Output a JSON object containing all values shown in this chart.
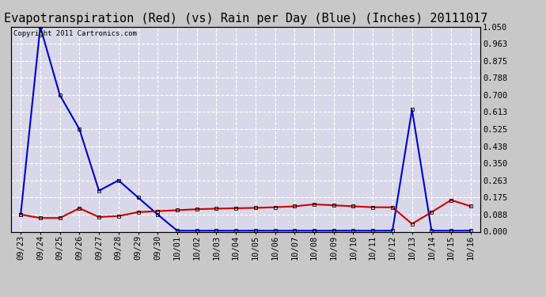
{
  "title": "Evapotranspiration (Red) (vs) Rain per Day (Blue) (Inches) 20111017",
  "copyright": "Copyright 2011 Cartronics.com",
  "x_labels": [
    "09/23",
    "09/24",
    "09/25",
    "09/26",
    "09/27",
    "09/28",
    "09/29",
    "09/30",
    "10/01",
    "10/02",
    "10/03",
    "10/04",
    "10/05",
    "10/06",
    "10/07",
    "10/08",
    "10/09",
    "10/10",
    "10/11",
    "10/12",
    "10/13",
    "10/14",
    "10/15",
    "10/16"
  ],
  "blue_data": [
    0.088,
    1.05,
    0.7,
    0.525,
    0.21,
    0.263,
    0.175,
    0.088,
    0.005,
    0.005,
    0.005,
    0.005,
    0.005,
    0.005,
    0.005,
    0.005,
    0.005,
    0.005,
    0.005,
    0.005,
    0.625,
    0.005,
    0.005,
    0.005
  ],
  "red_data": [
    0.088,
    0.07,
    0.07,
    0.12,
    0.075,
    0.08,
    0.1,
    0.105,
    0.11,
    0.115,
    0.118,
    0.12,
    0.122,
    0.125,
    0.13,
    0.14,
    0.135,
    0.13,
    0.125,
    0.125,
    0.04,
    0.1,
    0.162,
    0.13
  ],
  "ylim": [
    0.0,
    1.05
  ],
  "yticks": [
    0.0,
    0.088,
    0.175,
    0.263,
    0.35,
    0.438,
    0.525,
    0.613,
    0.7,
    0.788,
    0.875,
    0.963,
    1.05
  ],
  "blue_color": "#0000cc",
  "red_color": "#cc0000",
  "outer_bg": "#c8c8c8",
  "plot_bg": "#d8d8e8",
  "grid_color": "#ffffff",
  "title_fontsize": 11,
  "tick_fontsize": 7.5,
  "markersize": 3,
  "linewidth": 1.5
}
